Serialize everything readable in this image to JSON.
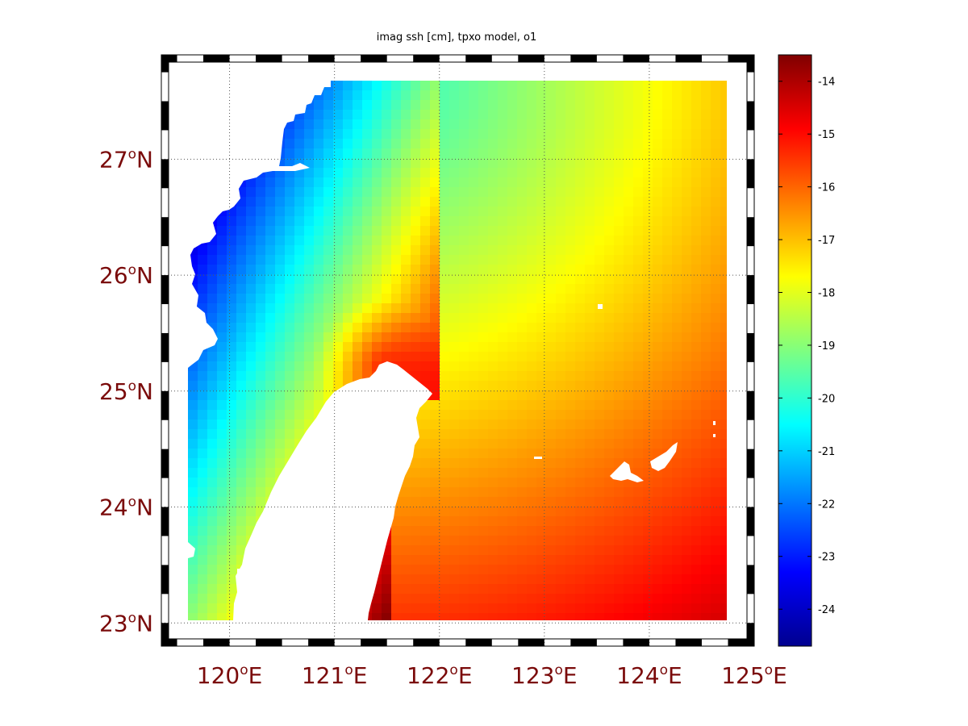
{
  "map": {
    "title": "imag ssh [cm], tpxo model, o1",
    "lon_ticks": [
      {
        "deg": "120",
        "sup": "o",
        "hemi": "E"
      },
      {
        "deg": "121",
        "sup": "o",
        "hemi": "E"
      },
      {
        "deg": "122",
        "sup": "o",
        "hemi": "E"
      },
      {
        "deg": "123",
        "sup": "o",
        "hemi": "E"
      },
      {
        "deg": "124",
        "sup": "o",
        "hemi": "E"
      },
      {
        "deg": "125",
        "sup": "o",
        "hemi": "E"
      }
    ],
    "lat_ticks": [
      {
        "deg": "27",
        "sup": "o",
        "hemi": "N"
      },
      {
        "deg": "26",
        "sup": "o",
        "hemi": "N"
      },
      {
        "deg": "25",
        "sup": "o",
        "hemi": "N"
      },
      {
        "deg": "24",
        "sup": "o",
        "hemi": "N"
      },
      {
        "deg": "23",
        "sup": "o",
        "hemi": "N"
      }
    ],
    "lon_range": [
      119.35,
      125.0
    ],
    "lat_range": [
      22.8,
      27.9
    ],
    "grid": true,
    "colormap": "jet",
    "land_color": "#ffffff"
  },
  "colorbar": {
    "range": [
      -24.7,
      -13.5
    ],
    "ticks": [
      "-14",
      "-15",
      "-16",
      "-17",
      "-18",
      "-19",
      "-20",
      "-21",
      "-22",
      "-23",
      "-24"
    ],
    "tick_values": [
      -14,
      -15,
      -16,
      -17,
      -18,
      -19,
      -20,
      -21,
      -22,
      -23,
      -24
    ]
  }
}
